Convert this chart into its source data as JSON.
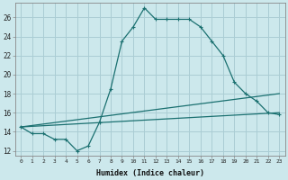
{
  "xlabel": "Humidex (Indice chaleur)",
  "ylabel": "",
  "bg_color": "#cce8ec",
  "grid_color": "#aacdd4",
  "line_color": "#1a7070",
  "xlim": [
    -0.5,
    23.5
  ],
  "ylim": [
    11.5,
    27.5
  ],
  "yticks": [
    12,
    14,
    16,
    18,
    20,
    22,
    24,
    26
  ],
  "xticks": [
    0,
    1,
    2,
    3,
    4,
    5,
    6,
    7,
    8,
    9,
    10,
    11,
    12,
    13,
    14,
    15,
    16,
    17,
    18,
    19,
    20,
    21,
    22,
    23
  ],
  "series": [
    {
      "x": [
        0,
        1,
        2,
        3,
        4,
        5,
        6,
        7,
        8,
        9,
        10,
        11,
        12,
        13,
        14,
        15,
        16,
        17,
        18,
        19,
        20,
        21,
        22,
        23
      ],
      "y": [
        14.5,
        13.8,
        13.8,
        13.2,
        13.2,
        12.0,
        12.5,
        15.0,
        18.5,
        23.5,
        25.0,
        27.0,
        25.8,
        25.8,
        25.8,
        25.8,
        25.0,
        23.5,
        22.0,
        19.2,
        18.0,
        17.2,
        16.0,
        15.8
      ]
    },
    {
      "x": [
        0,
        23
      ],
      "y": [
        14.5,
        18.0
      ]
    },
    {
      "x": [
        0,
        23
      ],
      "y": [
        14.5,
        16.0
      ]
    }
  ]
}
